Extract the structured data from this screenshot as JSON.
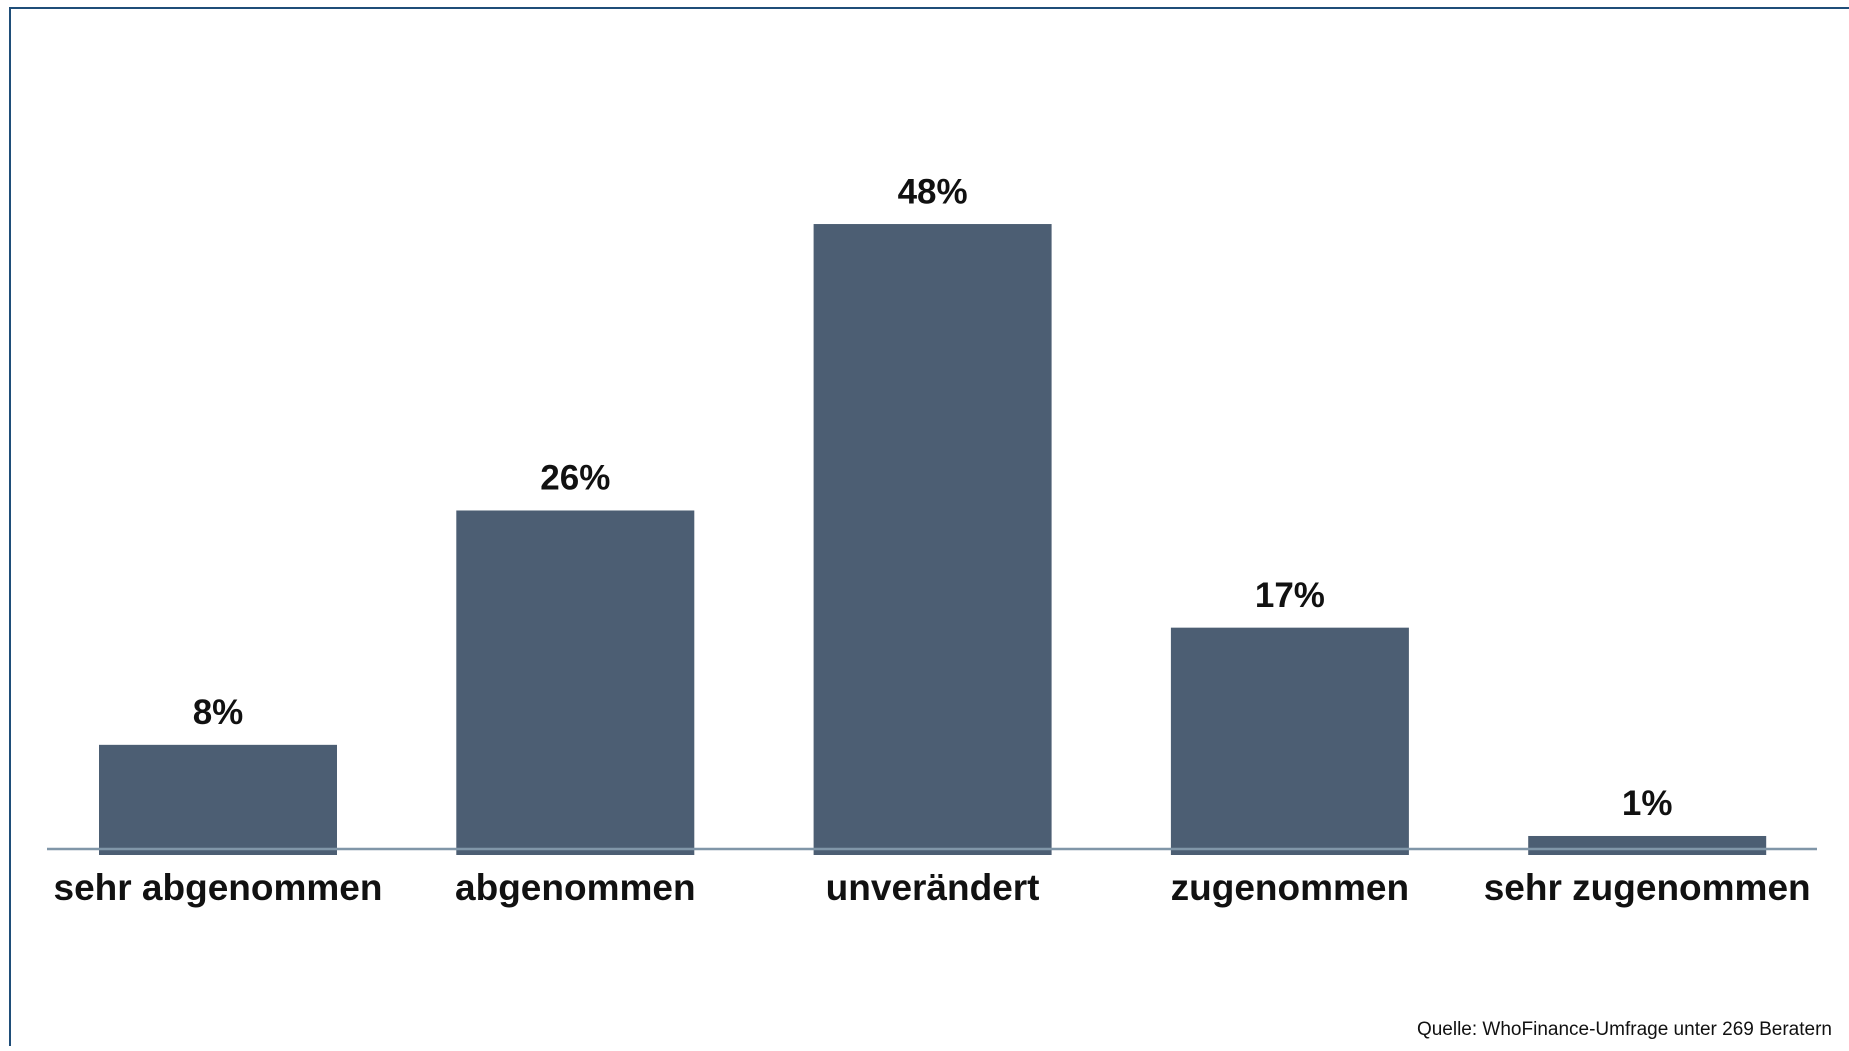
{
  "chart_data": {
    "type": "bar",
    "categories": [
      "sehr abgenommen",
      "abgenommen",
      "unverändert",
      "zugenommen",
      "sehr zugenommen"
    ],
    "values": [
      8,
      26,
      48,
      17,
      1
    ],
    "value_labels": [
      "8%",
      "26%",
      "48%",
      "17%",
      "1%"
    ],
    "color": "#4c5e73",
    "source": "Quelle: WhoFinance-Umfrage unter 269 Beratern"
  }
}
